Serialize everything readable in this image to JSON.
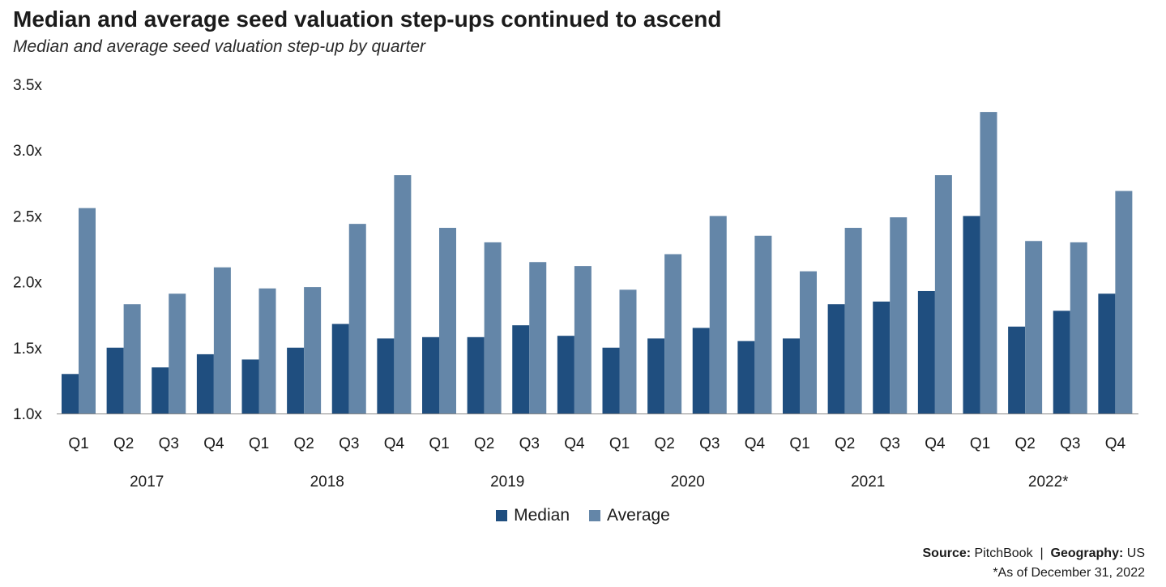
{
  "title": "Median and average seed valuation step-ups continued to ascend",
  "subtitle": "Median and average seed valuation step-up by quarter",
  "colors": {
    "median": "#1f4e7f",
    "average": "#6486a8",
    "axis": "#888888"
  },
  "legend": {
    "median": "Median",
    "average": "Average"
  },
  "footer": {
    "source_label": "Source:",
    "source_value": "PitchBook",
    "separator": "|",
    "geo_label": "Geography:",
    "geo_value": "US",
    "note": "*As of December 31, 2022"
  },
  "chart_data": {
    "type": "bar",
    "y_ticks": [
      "1.0x",
      "1.5x",
      "2.0x",
      "2.5x",
      "3.0x",
      "3.5x"
    ],
    "ylim": [
      1.0,
      3.5
    ],
    "quarters": [
      "Q1",
      "Q2",
      "Q3",
      "Q4",
      "Q1",
      "Q2",
      "Q3",
      "Q4",
      "Q1",
      "Q2",
      "Q3",
      "Q4",
      "Q1",
      "Q2",
      "Q3",
      "Q4",
      "Q1",
      "Q2",
      "Q3",
      "Q4",
      "Q1",
      "Q2",
      "Q3",
      "Q4"
    ],
    "years": [
      "2017",
      "2018",
      "2019",
      "2020",
      "2021",
      "2022*"
    ],
    "series": [
      {
        "name": "Median",
        "values": [
          1.3,
          1.5,
          1.35,
          1.45,
          1.41,
          1.5,
          1.68,
          1.57,
          1.58,
          1.58,
          1.67,
          1.59,
          1.5,
          1.57,
          1.65,
          1.55,
          1.57,
          1.83,
          1.85,
          1.93,
          2.5,
          1.66,
          1.78,
          1.91
        ]
      },
      {
        "name": "Average",
        "values": [
          2.56,
          1.83,
          1.91,
          2.11,
          1.95,
          1.96,
          2.44,
          2.81,
          2.41,
          2.3,
          2.15,
          2.12,
          1.94,
          2.21,
          2.5,
          2.35,
          2.08,
          2.41,
          2.49,
          2.81,
          3.29,
          2.31,
          2.3,
          2.69
        ]
      }
    ]
  }
}
